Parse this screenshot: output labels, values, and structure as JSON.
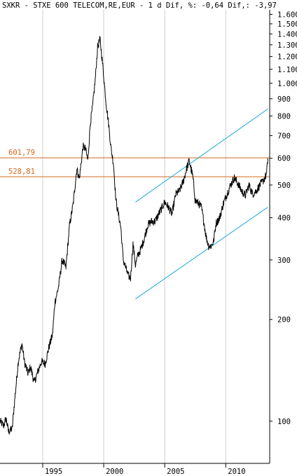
{
  "header": {
    "text": "SXKR - STXE 600 TELECOM,RE,EUR -  1 d Dif, %: -0,64 Dif,: -3,97"
  },
  "colors": {
    "price_line": "#000000",
    "horizontal_levels": "#d2691e",
    "channel": "#1fa8d8",
    "grid": "#cfcfcf",
    "background": "#ffffff"
  },
  "chart_data": {
    "type": "line",
    "title": "",
    "xlabel": "",
    "ylabel": "",
    "y_scale": "log",
    "ylim": [
      75,
      1650
    ],
    "xlim": [
      1991.5,
      2013.6
    ],
    "x_tick_labels": [
      "1995",
      "2000",
      "2005",
      "2010"
    ],
    "x_ticks": [
      1995,
      2000,
      2005,
      2010
    ],
    "y_ticks": [
      100,
      200,
      300,
      400,
      500,
      600,
      700,
      800,
      900,
      1000,
      1100,
      1200,
      1300,
      1400,
      1500,
      1600
    ],
    "y_tick_labels": [
      "100",
      "200",
      "300",
      "400",
      "500",
      "600",
      "700",
      "800",
      "900",
      "1.000",
      "1.100",
      "1.200",
      "1.300",
      "1.400",
      "1.500",
      "1.600"
    ],
    "series": [
      {
        "x": [
          1991.5,
          1991.8,
          1992.0,
          1992.2,
          1992.5,
          1992.7,
          1993.0,
          1993.3,
          1993.5,
          1993.8,
          1994.0,
          1994.3,
          1994.6,
          1994.9,
          1995.2,
          1995.5,
          1995.8,
          1996.0,
          1996.3,
          1996.6,
          1996.9,
          1997.2,
          1997.5,
          1997.8,
          1998.0,
          1998.3,
          1998.5,
          1998.7,
          1998.9,
          1999.1,
          1999.3,
          1999.5,
          1999.7,
          1999.9,
          2000.05,
          2000.2,
          2000.4,
          2000.6,
          2000.8,
          2001.0,
          2001.2,
          2001.4,
          2001.6,
          2001.8,
          2002.0,
          2002.2,
          2002.4,
          2002.6,
          2002.8,
          2003.0,
          2003.3,
          2003.6,
          2003.9,
          2004.2,
          2004.5,
          2004.8,
          2005.0,
          2005.3,
          2005.6,
          2005.9,
          2006.2,
          2006.5,
          2006.8,
          2007.0,
          2007.3,
          2007.5,
          2007.8,
          2008.0,
          2008.2,
          2008.4,
          2008.6,
          2008.8,
          2009.0,
          2009.2,
          2009.5,
          2009.8,
          2010.1,
          2010.4,
          2010.7,
          2011.0,
          2011.3,
          2011.6,
          2011.9,
          2012.2,
          2012.5,
          2012.8,
          2013.0,
          2013.2,
          2013.35,
          2013.45
        ],
        "values": [
          100,
          97,
          102,
          93,
          95,
          115,
          150,
          170,
          150,
          138,
          145,
          130,
          140,
          150,
          148,
          165,
          180,
          225,
          250,
          300,
          285,
          380,
          440,
          560,
          520,
          650,
          640,
          590,
          760,
          860,
          1020,
          1280,
          1350,
          1150,
          1000,
          870,
          760,
          640,
          580,
          450,
          410,
          375,
          300,
          285,
          270,
          265,
          335,
          290,
          310,
          320,
          345,
          380,
          390,
          390,
          410,
          430,
          445,
          430,
          410,
          470,
          480,
          510,
          560,
          590,
          530,
          450,
          440,
          430,
          390,
          350,
          330,
          330,
          340,
          385,
          400,
          440,
          470,
          500,
          525,
          505,
          480,
          465,
          500,
          470,
          480,
          500,
          510,
          525,
          540,
          600
        ]
      }
    ],
    "horizontal_levels": [
      {
        "label": "601,79",
        "value": 601.79
      },
      {
        "label": "528,81",
        "value": 528.81
      }
    ],
    "channel_lines": [
      {
        "x": [
          2002.6,
          2013.45
        ],
        "values": [
          445,
          840
        ]
      },
      {
        "x": [
          2002.6,
          2013.45
        ],
        "values": [
          230,
          430
        ]
      }
    ],
    "grid": true,
    "legend": "none"
  }
}
